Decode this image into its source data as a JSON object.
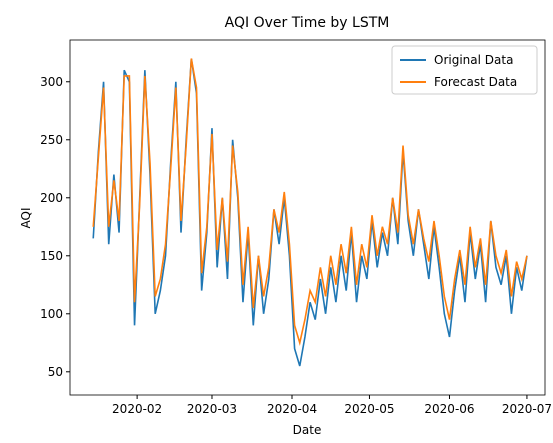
{
  "chart_data": {
    "type": "line",
    "title": "AQI Over Time by LSTM",
    "x_label": "Date",
    "y_label": "AQI",
    "x": [
      14,
      16,
      18,
      20,
      22,
      24,
      26,
      28,
      30,
      32,
      34,
      36,
      38,
      40,
      42,
      44,
      46,
      48,
      50,
      52,
      54,
      56,
      58,
      60,
      62,
      64,
      66,
      68,
      70,
      72,
      74,
      76,
      78,
      80,
      82,
      84,
      86,
      88,
      90,
      92,
      94,
      96,
      98,
      100,
      102,
      104,
      106,
      108,
      110,
      112,
      114,
      116,
      118,
      120,
      122,
      124,
      126,
      128,
      130,
      132,
      134,
      136,
      138,
      140,
      142,
      144,
      146,
      148,
      150,
      152,
      154,
      156,
      158,
      160,
      162,
      164,
      166,
      168,
      170,
      172,
      174,
      176,
      178,
      180,
      182
    ],
    "series": [
      {
        "name": "Original Data",
        "color": "#1f77b4",
        "values": [
          165,
          240,
          300,
          160,
          220,
          170,
          310,
          300,
          90,
          200,
          310,
          220,
          100,
          120,
          150,
          230,
          300,
          170,
          250,
          320,
          290,
          120,
          170,
          260,
          140,
          200,
          130,
          250,
          200,
          110,
          170,
          90,
          150,
          100,
          130,
          190,
          160,
          200,
          150,
          70,
          55,
          80,
          110,
          95,
          130,
          100,
          140,
          110,
          150,
          120,
          170,
          110,
          150,
          130,
          180,
          140,
          170,
          150,
          200,
          160,
          240,
          180,
          150,
          190,
          160,
          130,
          175,
          140,
          100,
          80,
          120,
          150,
          110,
          170,
          130,
          160,
          110,
          180,
          140,
          125,
          150,
          100,
          140,
          120,
          150
        ]
      },
      {
        "name": "Forecast Data",
        "color": "#ff7f0e",
        "values": [
          175,
          235,
          295,
          175,
          215,
          180,
          305,
          305,
          110,
          195,
          305,
          230,
          115,
          130,
          160,
          225,
          295,
          180,
          245,
          320,
          295,
          135,
          175,
          255,
          155,
          200,
          145,
          245,
          205,
          125,
          175,
          105,
          150,
          115,
          140,
          190,
          170,
          205,
          160,
          90,
          75,
          95,
          120,
          110,
          140,
          115,
          150,
          125,
          160,
          135,
          175,
          125,
          160,
          140,
          185,
          150,
          175,
          160,
          200,
          170,
          245,
          185,
          160,
          190,
          165,
          145,
          180,
          150,
          115,
          95,
          130,
          155,
          125,
          175,
          140,
          165,
          125,
          180,
          150,
          135,
          155,
          115,
          145,
          130,
          150
        ]
      }
    ],
    "xlim": [
      5,
      189
    ],
    "ylim": [
      30,
      336
    ],
    "xticks": [
      {
        "value": 31,
        "label": "2020-02"
      },
      {
        "value": 60,
        "label": "2020-03"
      },
      {
        "value": 91,
        "label": "2020-04"
      },
      {
        "value": 121,
        "label": "2020-05"
      },
      {
        "value": 152,
        "label": "2020-06"
      },
      {
        "value": 182,
        "label": "2020-07"
      }
    ],
    "yticks": [
      50,
      100,
      150,
      200,
      250,
      300
    ],
    "legend": "upper right"
  }
}
